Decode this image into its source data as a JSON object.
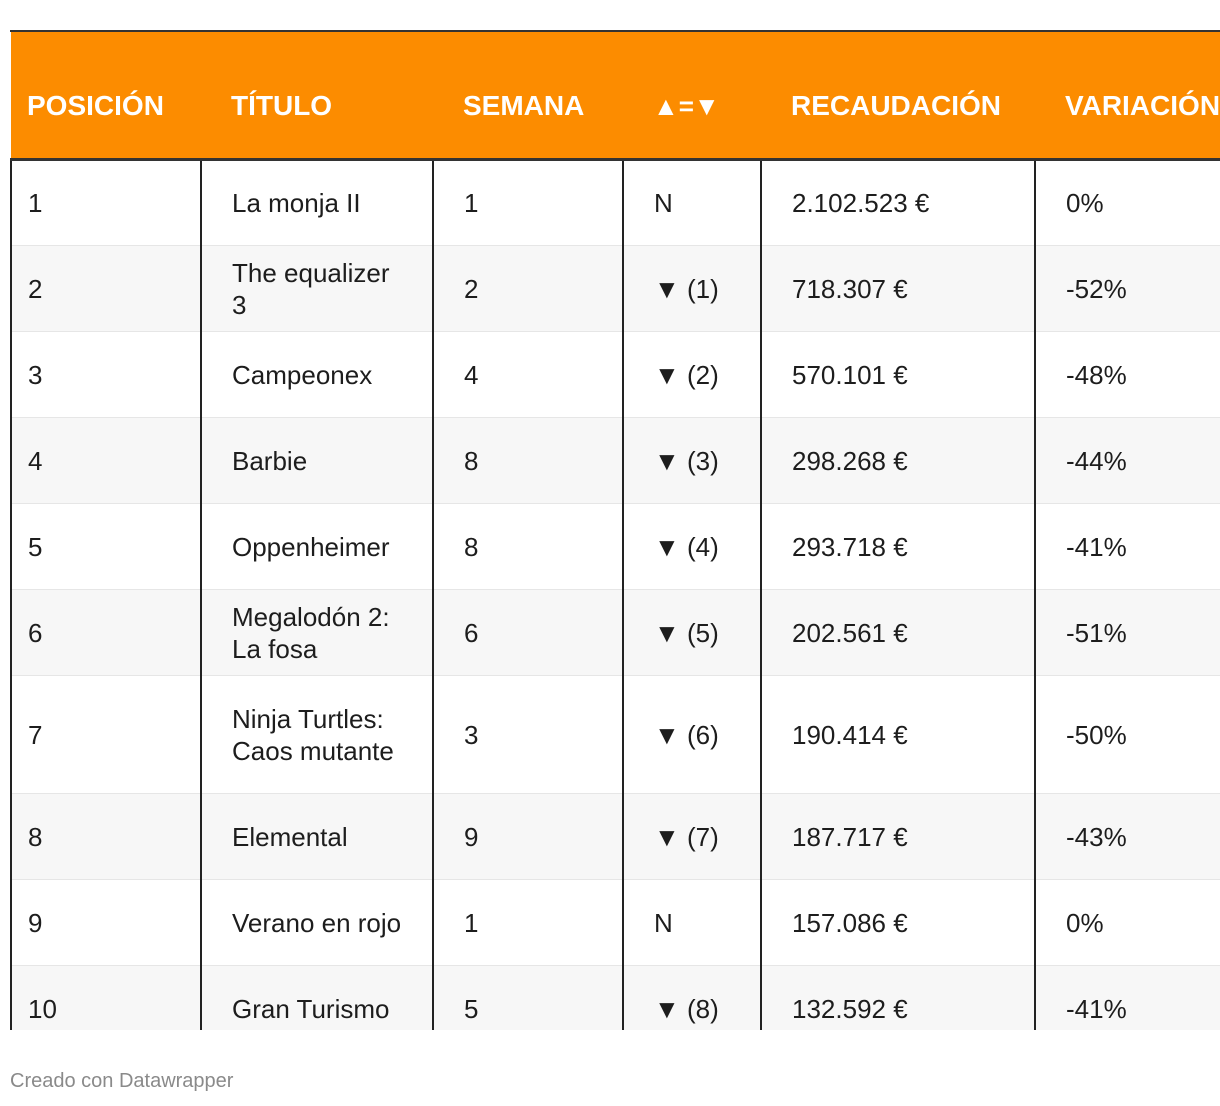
{
  "table": {
    "headers": [
      "POSICIÓN",
      "TÍTULO",
      "SEMANA",
      "▲=▼",
      "RECAUDACIÓN",
      "VARIACIÓN"
    ],
    "rows": [
      [
        "1",
        "La monja II",
        "1",
        "N",
        "2.102.523 €",
        "0%"
      ],
      [
        "2",
        "The equalizer 3",
        "2",
        "▼ (1)",
        "718.307 €",
        "-52%"
      ],
      [
        "3",
        "Campeonex",
        "4",
        "▼ (2)",
        "570.101 €",
        "-48%"
      ],
      [
        "4",
        "Barbie",
        "8",
        "▼ (3)",
        "298.268 €",
        "-44%"
      ],
      [
        "5",
        "Oppenheimer",
        "8",
        "▼ (4)",
        "293.718 €",
        "-41%"
      ],
      [
        "6",
        "Megalodón 2: La fosa",
        "6",
        "▼ (5)",
        "202.561 €",
        "-51%"
      ],
      [
        "7",
        "Ninja Turtles: Caos mutante",
        "3",
        "▼ (6)",
        "190.414 €",
        "-50%"
      ],
      [
        "8",
        "Elemental",
        "9",
        "▼ (7)",
        "187.717 €",
        "-43%"
      ],
      [
        "9",
        "Verano en rojo",
        "1",
        "N",
        "157.086 €",
        "0%"
      ],
      [
        "10",
        "Gran Turismo",
        "5",
        "▼ (8)",
        "132.592 €",
        "-41%"
      ]
    ]
  },
  "footer": {
    "credit": "Creado con Datawrapper"
  },
  "colors": {
    "header_bg": "#fc8c00",
    "header_text": "#ffffff",
    "row_alt": "#f7f7f7"
  }
}
